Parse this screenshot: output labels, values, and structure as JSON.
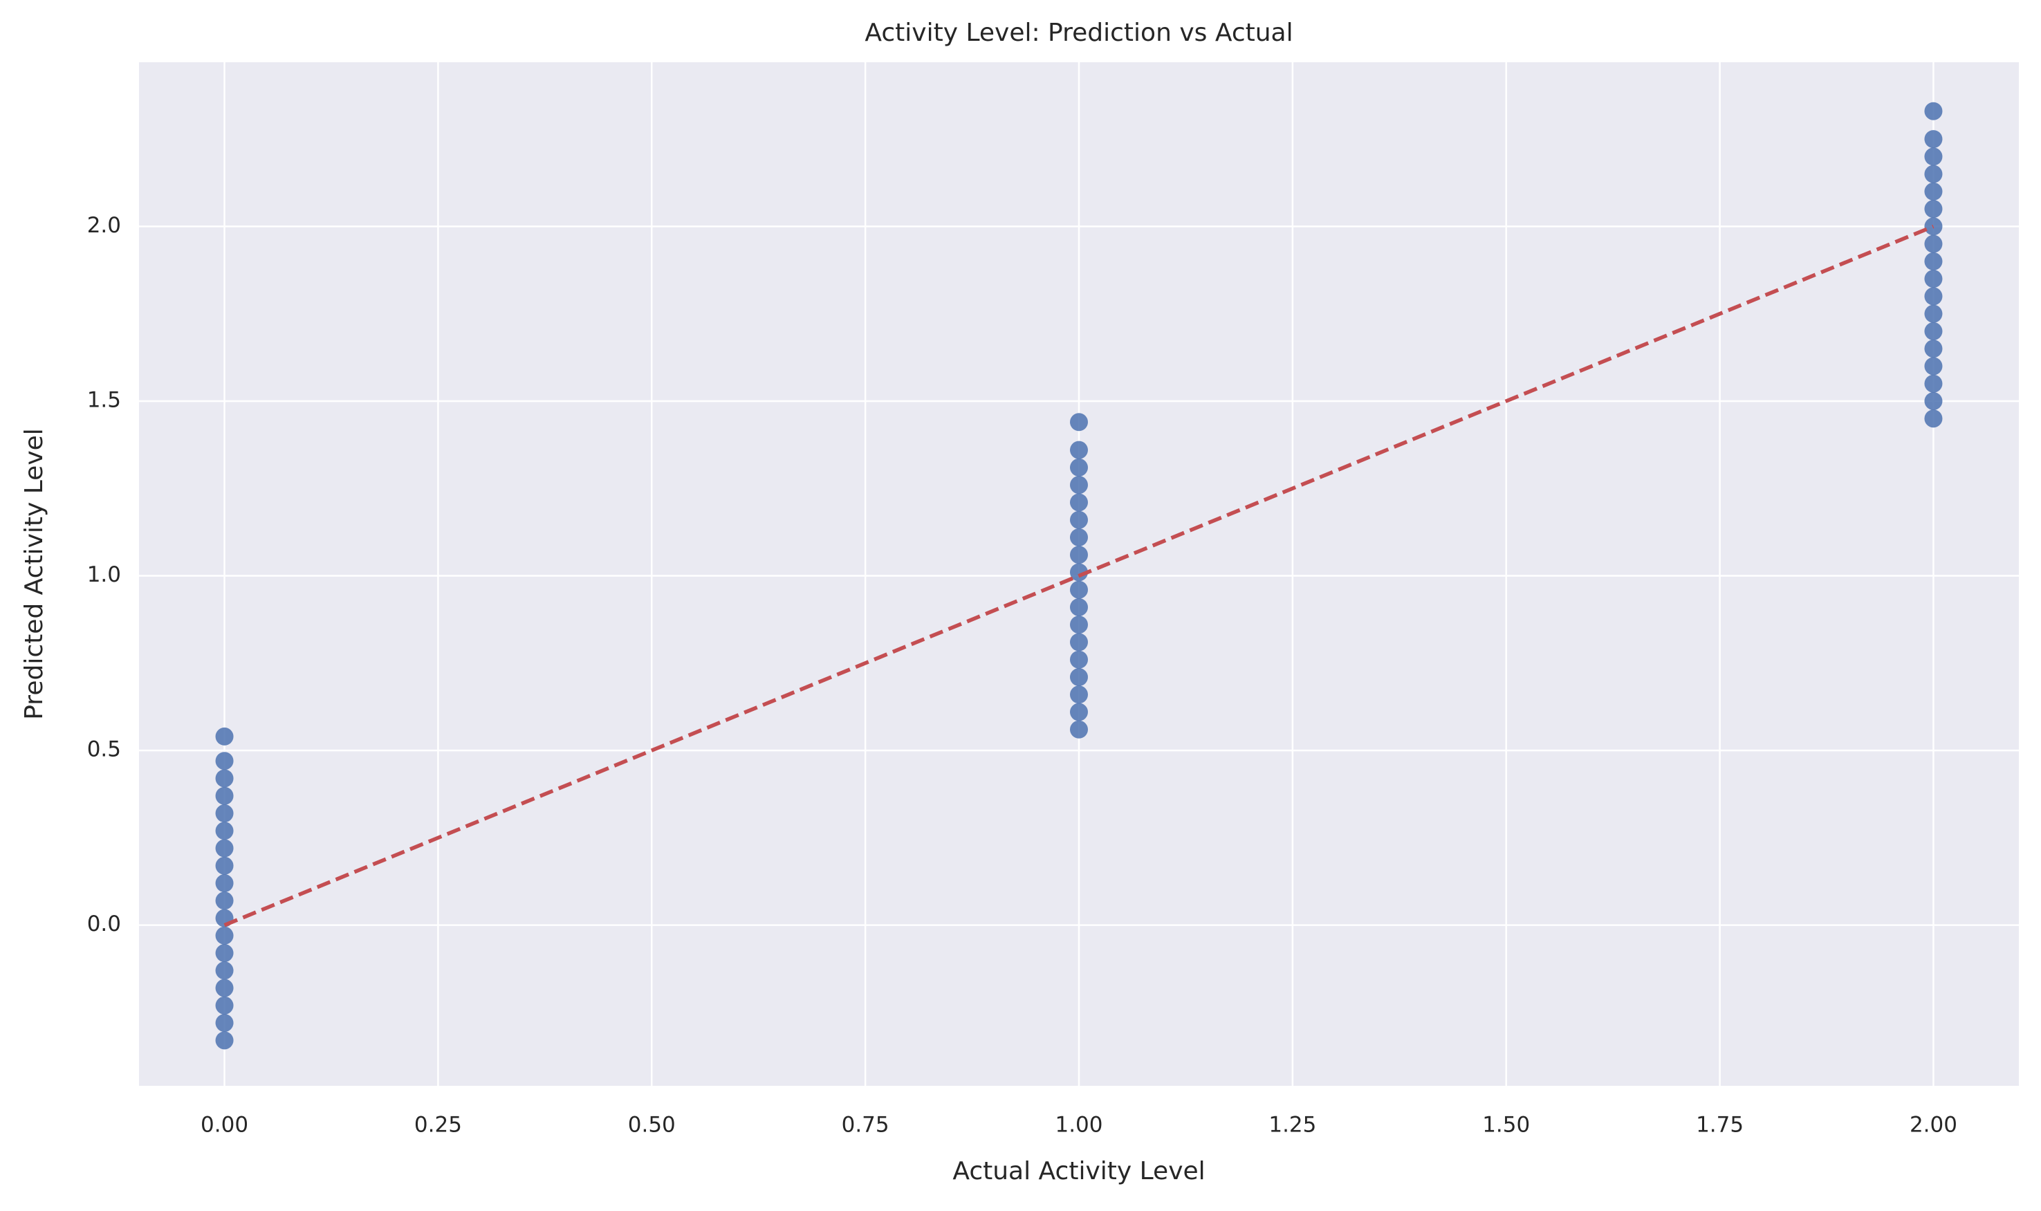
{
  "chart_data": {
    "type": "scatter",
    "title": "Activity Level: Prediction vs Actual",
    "xlabel": "Actual Activity Level",
    "ylabel": "Predicted Activity Level",
    "x": [
      0,
      0,
      0,
      0,
      0,
      0,
      0,
      0,
      0,
      0,
      0,
      0,
      0,
      0,
      0,
      0,
      0,
      0,
      1,
      1,
      1,
      1,
      1,
      1,
      1,
      1,
      1,
      1,
      1,
      1,
      1,
      1,
      1,
      1,
      1,
      1,
      2,
      2,
      2,
      2,
      2,
      2,
      2,
      2,
      2,
      2,
      2,
      2,
      2,
      2,
      2,
      2,
      2,
      2
    ],
    "y": [
      -0.33,
      -0.28,
      -0.23,
      -0.18,
      -0.13,
      -0.08,
      -0.03,
      0.02,
      0.07,
      0.12,
      0.17,
      0.22,
      0.27,
      0.32,
      0.37,
      0.42,
      0.47,
      0.54,
      0.56,
      0.61,
      0.66,
      0.71,
      0.76,
      0.81,
      0.86,
      0.91,
      0.96,
      1.01,
      1.06,
      1.11,
      1.16,
      1.21,
      1.26,
      1.31,
      1.36,
      1.44,
      1.45,
      1.5,
      1.55,
      1.6,
      1.65,
      1.7,
      1.75,
      1.8,
      1.85,
      1.9,
      1.95,
      2.0,
      2.05,
      2.1,
      2.15,
      2.2,
      2.25,
      2.33
    ],
    "color": "#4c72b0",
    "reference_line": {
      "x": [
        0,
        2
      ],
      "y": [
        0,
        2
      ],
      "color": "#c44e52",
      "style": "dashed"
    },
    "xlim": [
      -0.1,
      2.1
    ],
    "ylim": [
      -0.46,
      2.47
    ],
    "xticks": [
      {
        "value": 0,
        "label": "0.00"
      },
      0.25,
      {
        "value": 0.5,
        "label": "0.50"
      },
      0.75,
      {
        "value": 1,
        "label": "1.00"
      },
      1.25,
      {
        "value": 1.5,
        "label": "1.50"
      },
      1.75,
      {
        "value": 2,
        "label": "2.00"
      }
    ],
    "yticks": [
      {
        "value": 0,
        "label": "0.0"
      },
      0.5,
      {
        "value": 1,
        "label": "1.0"
      },
      1.5,
      {
        "value": 2,
        "label": "2.0"
      }
    ],
    "grid": true
  }
}
